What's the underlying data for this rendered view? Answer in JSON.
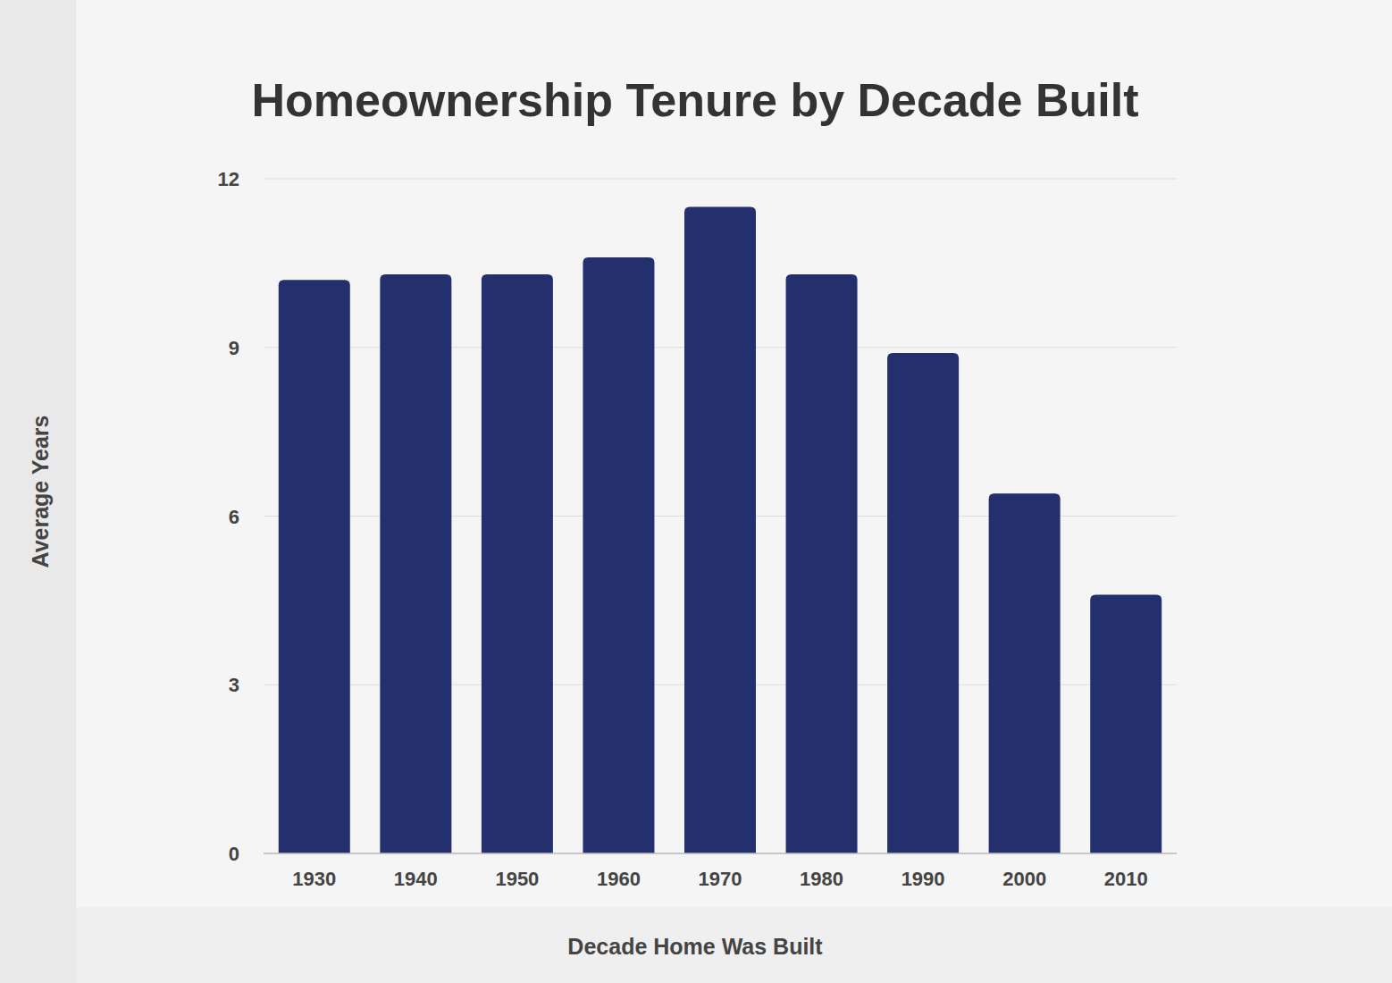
{
  "chart_data": {
    "type": "bar",
    "title": "Homeownership Tenure by Decade Built",
    "x_label": "Decade Home Was Built",
    "y_label": "Average Years",
    "categories": [
      "1930",
      "1940",
      "1950",
      "1960",
      "1970",
      "1980",
      "1990",
      "2000",
      "2010"
    ],
    "values": [
      10.2,
      10.3,
      10.3,
      10.6,
      11.5,
      10.3,
      8.9,
      6.4,
      4.6
    ],
    "color": "#242f6e",
    "ylim": [
      0,
      12
    ],
    "yticks": [
      0,
      3,
      6,
      9,
      12
    ],
    "grid": true
  }
}
